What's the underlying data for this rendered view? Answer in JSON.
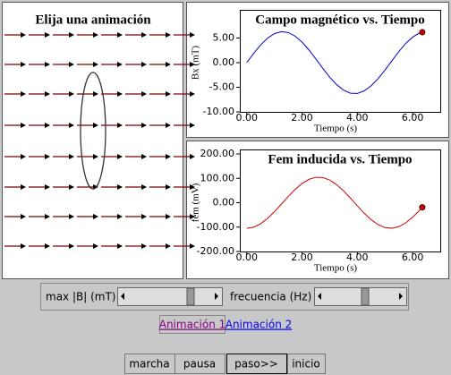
{
  "ui": {
    "left_title": "Elija una animación",
    "slider_1_label": "max |B| (mT)",
    "slider_2_label": "frecuencia (Hz)",
    "link_1": "Animación 1",
    "link_2": "Animación 2",
    "buttons": [
      "marcha",
      "pausa",
      "paso>>",
      "inicio"
    ]
  },
  "chart_data": [
    {
      "type": "line",
      "title": "Campo magnético vs. Tiempo",
      "x_label": "Tiempo (s)",
      "y_label": "Bx (mT)",
      "color": "#0000cc",
      "marker_color": "#cc0000",
      "x": [
        0,
        0.25,
        0.5,
        0.75,
        1,
        1.25,
        1.5,
        1.75,
        2,
        2.25,
        2.5,
        2.75,
        3,
        3.25,
        3.5,
        3.75,
        4,
        4.25,
        4.5,
        4.75,
        5,
        5.25,
        5.5,
        5.75,
        6,
        6.25,
        6.35
      ],
      "values": [
        0,
        1.87,
        3.58,
        4.96,
        5.89,
        6.29,
        6.12,
        5.39,
        4.18,
        2.59,
        0.76,
        -1.14,
        -2.94,
        -4.45,
        -5.58,
        -6.2,
        -6.26,
        -5.73,
        -4.71,
        -3.26,
        -1.51,
        0.38,
        2.24,
        3.89,
        5.19,
        6.02,
        6.19
      ],
      "xlim": [
        -0.25,
        7
      ],
      "ylim": [
        -10,
        10
      ],
      "xticks": [
        {
          "value": 0,
          "label": "0.00"
        },
        {
          "value": 2,
          "label": "2.00"
        },
        {
          "value": 4,
          "label": "4.00"
        },
        {
          "value": 6,
          "label": "6.00"
        }
      ],
      "yticks": [
        {
          "value": -10,
          "label": "-10.00"
        },
        {
          "value": -5,
          "label": "-5.00"
        },
        {
          "value": 0,
          "label": "0.00"
        },
        {
          "value": 5,
          "label": "5.00"
        }
      ]
    },
    {
      "type": "line",
      "title": "Fem inducida vs. Tiempo",
      "x_label": "Tiempo (s)",
      "y_label": "fem (mV)",
      "color": "#cc0000",
      "marker_color": "#cc0000",
      "x": [
        0,
        0.25,
        0.5,
        0.75,
        1,
        1.25,
        1.5,
        1.75,
        2,
        2.25,
        2.5,
        2.75,
        3,
        3.25,
        3.5,
        3.75,
        4,
        4.25,
        4.5,
        4.75,
        5,
        5.25,
        5.5,
        5.75,
        6,
        6.25,
        6.35
      ],
      "values": [
        -105,
        -100.3,
        -86.4,
        -64.8,
        -37.3,
        -6.4,
        25.1,
        54.4,
        78.6,
        95.8,
        104.3,
        103.2,
        92.9,
        74.2,
        48.9,
        18.9,
        -12.6,
        -43.3,
        -69.6,
        -89.9,
        -102,
        -104.8,
        -98.2,
        -82.6,
        -59.7,
        -31.2,
        -18.9
      ],
      "xlim": [
        -0.25,
        7
      ],
      "ylim": [
        -200,
        200
      ],
      "xticks": [
        {
          "value": 0,
          "label": "0.00"
        },
        {
          "value": 2,
          "label": "2.00"
        },
        {
          "value": 4,
          "label": "4.00"
        },
        {
          "value": 6,
          "label": "6.00"
        }
      ],
      "yticks": [
        {
          "value": -200,
          "label": "-200.00"
        },
        {
          "value": -100,
          "label": "-100.00"
        },
        {
          "value": 0,
          "label": "0.00"
        },
        {
          "value": 100,
          "label": "100.00"
        },
        {
          "value": 200,
          "label": "200.00"
        }
      ]
    }
  ]
}
